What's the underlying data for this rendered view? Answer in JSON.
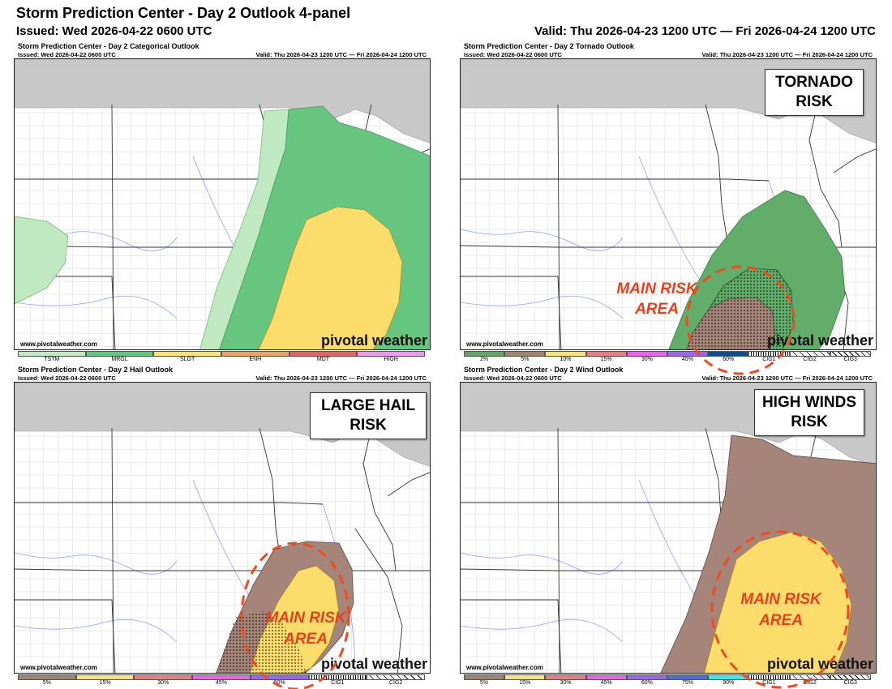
{
  "header": {
    "title": "Storm Prediction Center - Day 2 Outlook 4-panel",
    "issued": "Issued: Wed 2026-04-22 0600 UTC",
    "valid": "Valid: Thu 2026-04-23 1200 UTC — Fri 2026-04-24 1200 UTC"
  },
  "panels": [
    {
      "title": "Storm Prediction Center - Day 2 Categorical Outlook",
      "issued": "Issued: Wed 2026-04-22 0600 UTC",
      "valid": "Valid: Thu 2026-04-23 1200 UTC — Fri 2026-04-24 1200 UTC",
      "url": "www.pivotalweather.com",
      "logo": "pivotal weather",
      "legend": [
        {
          "label": "TSTM",
          "color": "#c1e9c1"
        },
        {
          "label": "MRGL",
          "color": "#66c57f"
        },
        {
          "label": "SLGT",
          "color": "#f6e27f"
        },
        {
          "label": "ENH",
          "color": "#e6a66a"
        },
        {
          "label": "MDT",
          "color": "#e06666"
        },
        {
          "label": "HIGH",
          "color": "#ee99ee"
        }
      ]
    },
    {
      "title": "Storm Prediction Center - Day 2 Tornado Outlook",
      "issued": "Issued: Wed 2026-04-22 0600 UTC",
      "valid": "Valid: Thu 2026-04-23 1200 UTC — Fri 2026-04-24 1200 UTC",
      "url": "www.pivotalweather.com",
      "logo": "pivotal weather",
      "risk_label": [
        "TORNADO",
        "RISK"
      ],
      "annotation": [
        "MAIN RISK",
        "AREA"
      ],
      "legend": [
        {
          "label": "2%",
          "color": "#66a366"
        },
        {
          "label": "5%",
          "color": "#9d8573"
        },
        {
          "label": "10%",
          "color": "#f6e27f"
        },
        {
          "label": "15%",
          "color": "#e67f7f"
        },
        {
          "label": "30%",
          "color": "#e666e6"
        },
        {
          "label": "45%",
          "color": "#9966ee"
        },
        {
          "label": "60%",
          "color": "#104e8b"
        },
        {
          "label": "CIG1",
          "color": "#ffffff"
        },
        {
          "label": "CIG2",
          "color": "#ffffff"
        },
        {
          "label": "CIG3",
          "color": "#ffffff"
        }
      ]
    },
    {
      "title": "Storm Prediction Center - Day 2 Hail Outlook",
      "issued": "Issued: Wed 2026-04-22 0600 UTC",
      "valid": "Valid: Thu 2026-04-23 1200 UTC — Fri 2026-04-24 1200 UTC",
      "url": "www.pivotalweather.com",
      "logo": "pivotal weather",
      "risk_label": [
        "LARGE HAIL",
        "RISK"
      ],
      "annotation": [
        "MAIN RISK",
        "AREA"
      ],
      "legend": [
        {
          "label": "5%",
          "color": "#9d8573"
        },
        {
          "label": "15%",
          "color": "#f6e27f"
        },
        {
          "label": "30%",
          "color": "#e67f7f"
        },
        {
          "label": "45%",
          "color": "#e666e6"
        },
        {
          "label": "60%",
          "color": "#9966ee"
        },
        {
          "label": "CIG1",
          "color": "#ffffff"
        },
        {
          "label": "CIG2",
          "color": "#ffffff"
        }
      ]
    },
    {
      "title": "Storm Prediction Center - Day 2 Wind Outlook",
      "issued": "Issued: Wed 2026-04-22 0600 UTC",
      "valid": "Valid: Thu 2026-04-23 1200 UTC — Fri 2026-04-24 1200 UTC",
      "url": "www.pivotalweather.com",
      "logo": "pivotal weather",
      "risk_label": [
        "HIGH WINDS",
        "RISK"
      ],
      "annotation": [
        "MAIN RISK",
        "AREA"
      ],
      "legend": [
        {
          "label": "5%",
          "color": "#9d8573"
        },
        {
          "label": "15%",
          "color": "#f6e27f"
        },
        {
          "label": "30%",
          "color": "#e67f7f"
        },
        {
          "label": "45%",
          "color": "#e666e6"
        },
        {
          "label": "60%",
          "color": "#9966ee"
        },
        {
          "label": "75%",
          "color": "#4a6fd4"
        },
        {
          "label": "90%",
          "color": "#33eeee"
        },
        {
          "label": "CIG1",
          "color": "#ffffff"
        },
        {
          "label": "CIG2",
          "color": "#ffffff"
        },
        {
          "label": "CIG3",
          "color": "#ffffff"
        }
      ]
    }
  ],
  "colors": {
    "canada": "#c8c8c8",
    "tstm": "#c1e9c1",
    "mrgl": "#66c57f",
    "slgt": "#fcdc6a",
    "tor2": "#62ad6a",
    "tor5": "#a5857a",
    "annotation": "#e8401c"
  }
}
